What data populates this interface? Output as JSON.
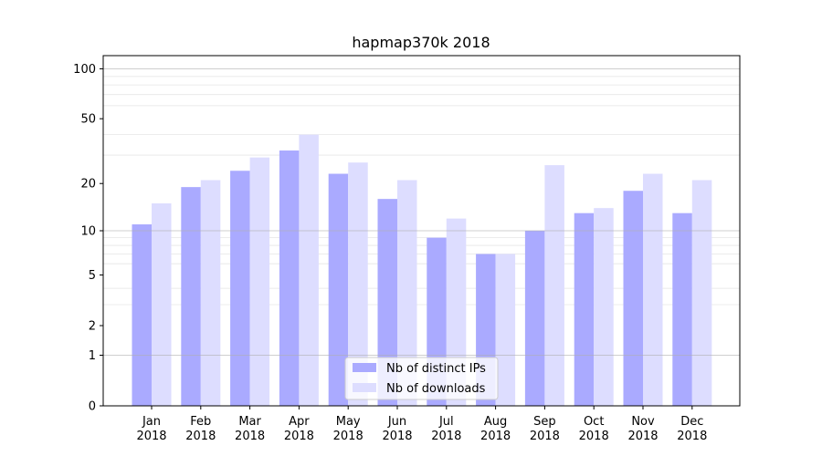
{
  "chart_data": {
    "type": "bar",
    "title": "hapmap370k 2018",
    "xlabel": "",
    "ylabel": "",
    "yscale": "symlog",
    "ylim": [
      0,
      120
    ],
    "yticks": [
      0,
      1,
      2,
      5,
      10,
      20,
      50,
      100
    ],
    "ytick_labels": [
      "0",
      "1",
      "2",
      "5",
      "10",
      "20",
      "50",
      "100"
    ],
    "categories": [
      {
        "month": "Jan",
        "year": "2018"
      },
      {
        "month": "Feb",
        "year": "2018"
      },
      {
        "month": "Mar",
        "year": "2018"
      },
      {
        "month": "Apr",
        "year": "2018"
      },
      {
        "month": "May",
        "year": "2018"
      },
      {
        "month": "Jun",
        "year": "2018"
      },
      {
        "month": "Jul",
        "year": "2018"
      },
      {
        "month": "Aug",
        "year": "2018"
      },
      {
        "month": "Sep",
        "year": "2018"
      },
      {
        "month": "Oct",
        "year": "2018"
      },
      {
        "month": "Nov",
        "year": "2018"
      },
      {
        "month": "Dec",
        "year": "2018"
      }
    ],
    "series": [
      {
        "name": "Nb of distinct IPs",
        "color": "#aaaaff",
        "values": [
          11,
          19,
          24,
          32,
          23,
          16,
          9,
          7,
          10,
          13,
          18,
          13
        ]
      },
      {
        "name": "Nb of downloads",
        "color": "#ddddff",
        "values": [
          15,
          21,
          29,
          40,
          27,
          21,
          12,
          7,
          26,
          14,
          23,
          21
        ]
      }
    ],
    "legend_position": "lower center",
    "grid": true
  }
}
